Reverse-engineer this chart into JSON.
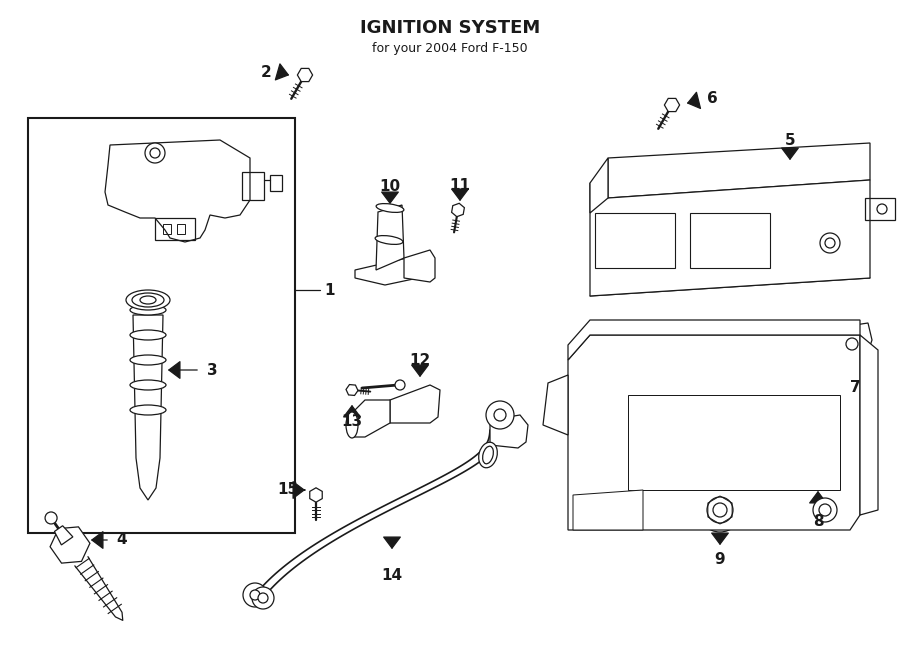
{
  "title": "IGNITION SYSTEM",
  "subtitle": "for your 2004 Ford F-150",
  "bg_color": "#ffffff",
  "line_color": "#1a1a1a",
  "figsize": [
    9.0,
    6.62
  ],
  "dpi": 100,
  "lw": 0.9
}
